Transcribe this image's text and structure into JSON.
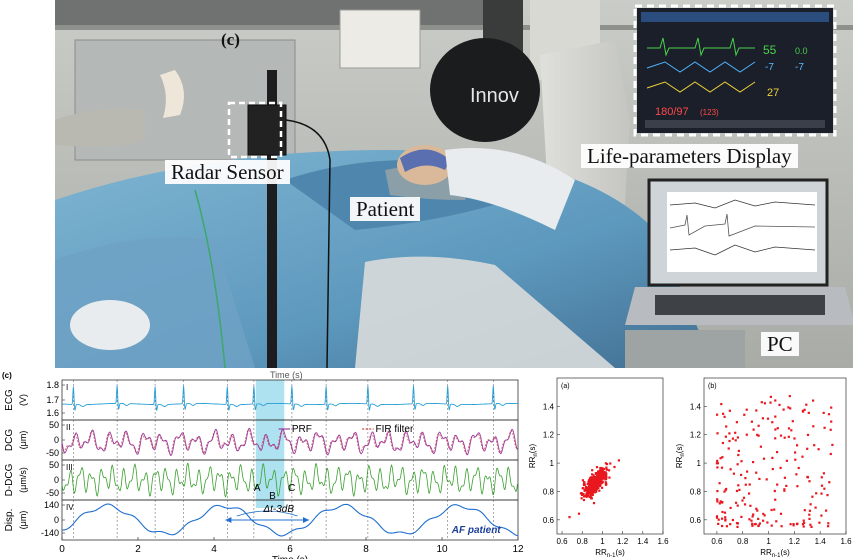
{
  "photo": {
    "panel_letter": "(c)",
    "monitor_brand": "Innov",
    "labels": {
      "radar": "Radar Sensor",
      "patient": "Patient",
      "display": "Life-parameters Display",
      "pc": "PC"
    },
    "monitor_readouts": {
      "hr": "55",
      "a": "-7",
      "b": "-7",
      "c": "0.0",
      "spo2": "27",
      "bp": "180/97",
      "bp2": "(123)"
    }
  },
  "signal_panel": {
    "panel_letter": "(c)",
    "clipped_label": "Time (s)",
    "xlabel": "Time (s)",
    "xticks": [
      "0",
      "2",
      "4",
      "6",
      "8",
      "10",
      "12"
    ],
    "rows": [
      {
        "roman": "I",
        "ylabel": "ECG",
        "unit": "(V)",
        "ticks": [
          "1.8",
          "1.7",
          "1.6"
        ]
      },
      {
        "roman": "II",
        "ylabel": "DCG",
        "unit": "(μm)",
        "ticks": [
          "50",
          "0",
          "-50"
        ]
      },
      {
        "roman": "III",
        "ylabel": "D-DCG",
        "unit": "(μm/s)",
        "ticks": [
          "50",
          "0",
          "-50"
        ]
      },
      {
        "roman": "IV",
        "ylabel": "Disp.",
        "unit": "(μm)",
        "ticks": [
          "140",
          "0",
          "-140"
        ]
      }
    ],
    "legend": [
      "PRF",
      "FIR filter"
    ],
    "point_labels": [
      "A",
      "B",
      "C"
    ],
    "annotation": "Δt-3dB",
    "tag": "AF patient",
    "colors": {
      "ecg": "#2a9fd6",
      "prf": "#9b3ca0",
      "fir": "#d0453f",
      "ddcg": "#3aa02e",
      "disp": "#1f6fd0",
      "highlight": "#6ccbe6"
    }
  },
  "chart_data": [
    {
      "type": "scatter",
      "panel_letter": "(a)",
      "xlabel": "RR",
      "xlabel_sub": "n-1",
      "xlabel_unit": "(s)",
      "ylabel": "RR",
      "ylabel_sub": "n",
      "ylabel_unit": "(s)",
      "xlim": [
        0.55,
        1.6
      ],
      "ylim": [
        0.5,
        1.6
      ],
      "xticks": [
        "0.6",
        "0.8",
        "1",
        "1.2",
        "1.4",
        "1.6"
      ],
      "yticks": [
        "0.6",
        "0.8",
        "1",
        "1.2",
        "1.4"
      ],
      "color": "#e8181e",
      "cluster": {
        "center": [
          0.93,
          0.86
        ],
        "spread": [
          0.06,
          0.05
        ],
        "count": 420
      }
    },
    {
      "type": "scatter",
      "panel_letter": "(b)",
      "xlabel": "RR",
      "xlabel_sub": "n-1",
      "xlabel_unit": "(s)",
      "ylabel": "RR",
      "ylabel_sub": "n",
      "ylabel_unit": "(s)",
      "xlim": [
        0.5,
        1.6
      ],
      "ylim": [
        0.5,
        1.6
      ],
      "xticks": [
        "0.6",
        "0.8",
        "1",
        "1.2",
        "1.4",
        "1.6"
      ],
      "yticks": [
        "0.6",
        "0.8",
        "1",
        "1.2",
        "1.4"
      ],
      "color": "#e8181e",
      "spread": {
        "x_range": [
          0.6,
          1.5
        ],
        "y_range": [
          0.55,
          1.5
        ],
        "count": 210
      }
    }
  ]
}
